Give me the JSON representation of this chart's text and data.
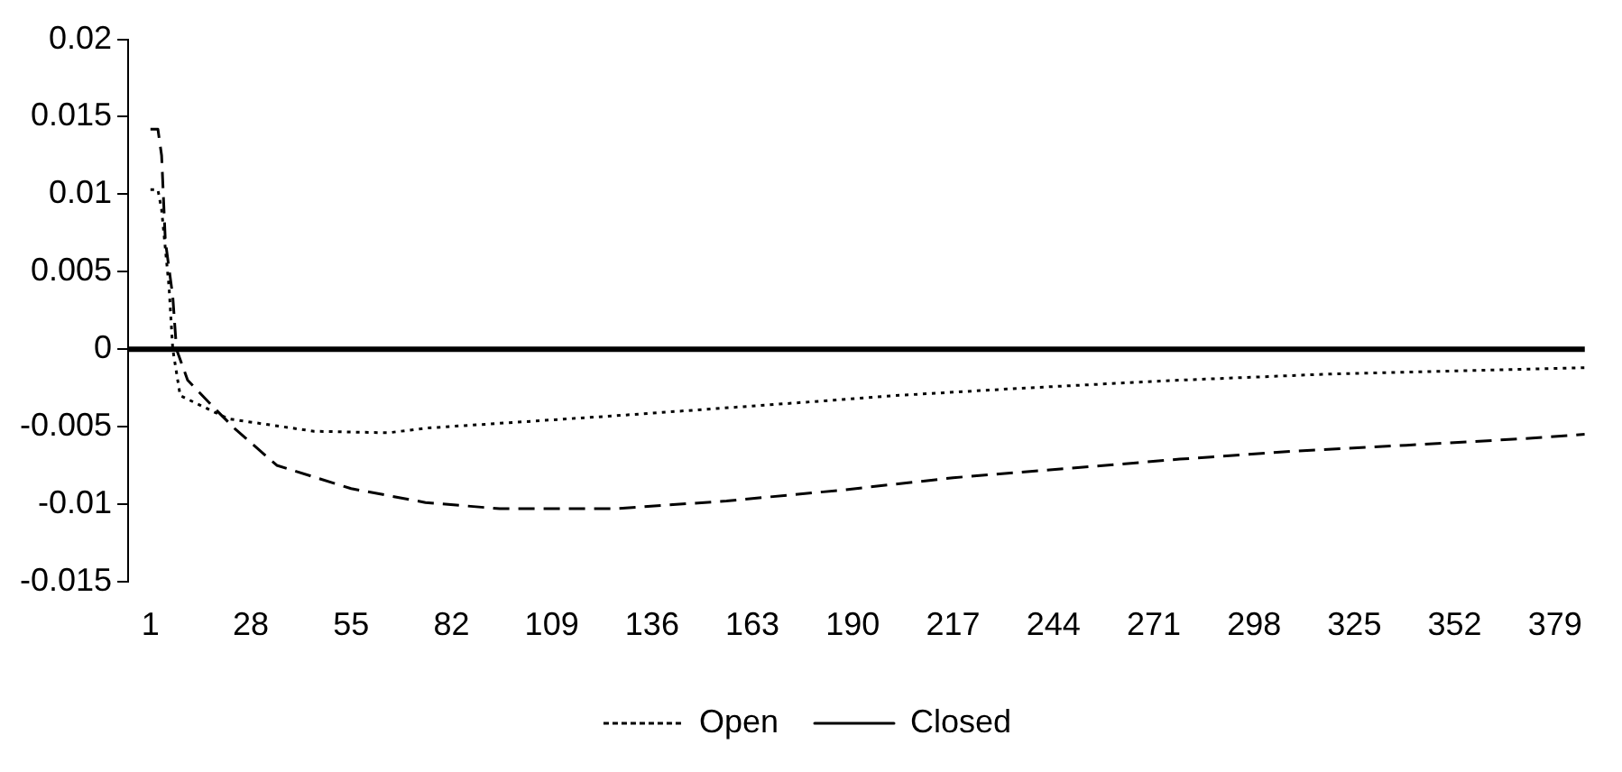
{
  "chart_data": {
    "type": "line",
    "xlim": [
      -5,
      387
    ],
    "xticks": [
      1,
      28,
      55,
      82,
      109,
      136,
      163,
      190,
      217,
      244,
      271,
      298,
      325,
      352,
      379
    ],
    "ylim": [
      -0.015,
      0.02
    ],
    "yticks": [
      -0.015,
      -0.01,
      -0.005,
      0,
      0.005,
      0.01,
      0.015,
      0.02
    ],
    "grid": false,
    "legend": "bottom",
    "marker": "none",
    "ref_lines": [
      {
        "axis": "y",
        "value": 0,
        "color": "#000000",
        "line_style": "solid"
      }
    ],
    "series": [
      {
        "name": "Open",
        "color": "#000000",
        "line_style": "dotted",
        "x": [
          1,
          3,
          4,
          6,
          7,
          9,
          22,
          45,
          65,
          75,
          126,
          173,
          201,
          237,
          278,
          319,
          353,
          387
        ],
        "values": [
          0.0103,
          0.0103,
          0.009,
          0.004,
          0,
          -0.003,
          -0.0045,
          -0.0053,
          -0.0054,
          -0.0051,
          -0.0043,
          -0.0035,
          -0.003,
          -0.0025,
          -0.002,
          -0.0016,
          -0.0014,
          -0.0012
        ]
      },
      {
        "name": "Closed",
        "color": "#000000",
        "line_style": "dashed",
        "x": [
          1,
          3,
          4,
          5,
          7,
          8,
          11,
          19,
          24,
          35,
          55,
          75,
          95,
          126,
          156,
          187,
          217,
          248,
          278,
          308,
          339,
          369,
          387
        ],
        "values": [
          0.0142,
          0.0142,
          0.0125,
          0.007,
          0.0034,
          0,
          -0.002,
          -0.004,
          -0.0052,
          -0.0075,
          -0.009,
          -0.0099,
          -0.0103,
          -0.0103,
          -0.0098,
          -0.0091,
          -0.0083,
          -0.0077,
          -0.0071,
          -0.0066,
          -0.0062,
          -0.0058,
          -0.0055
        ]
      }
    ]
  }
}
